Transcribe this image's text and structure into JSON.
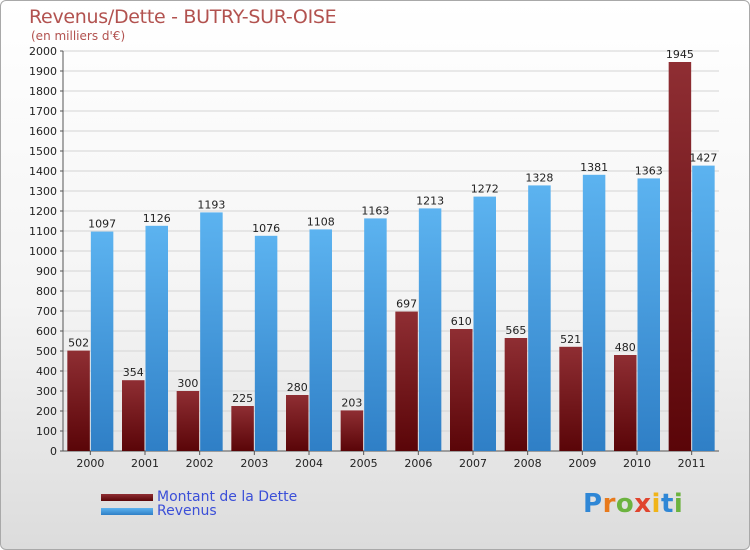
{
  "title": "Revenus/Dette - BUTRY-SUR-OISE",
  "subtitle": "(en milliers d'€)",
  "brand": "Proxiti",
  "colors": {
    "debt": "#7a1a1e",
    "revenue": "#4ea4e6",
    "title": "#b2524f",
    "legend_text": "#3b4fd8",
    "grid": "#d4d4d4"
  },
  "chart_data": {
    "type": "bar",
    "categories": [
      "2000",
      "2001",
      "2002",
      "2003",
      "2004",
      "2005",
      "2006",
      "2007",
      "2008",
      "2009",
      "2010",
      "2011"
    ],
    "series": [
      {
        "name": "Montant de la Dette",
        "values": [
          502,
          354,
          300,
          225,
          280,
          203,
          697,
          610,
          565,
          521,
          480,
          1945
        ]
      },
      {
        "name": "Revenus",
        "values": [
          1097,
          1126,
          1193,
          1076,
          1108,
          1163,
          1213,
          1272,
          1328,
          1381,
          1363,
          1427
        ]
      }
    ],
    "ylim": [
      0,
      2000
    ],
    "ytick_step": 100,
    "grid": true,
    "legend_position": "bottom-left"
  }
}
